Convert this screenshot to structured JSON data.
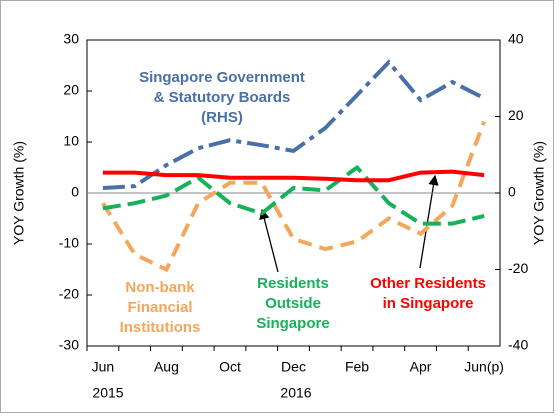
{
  "chart_data": {
    "type": "line",
    "categories": [
      "Jun",
      null,
      "Aug",
      null,
      "Oct",
      null,
      "Dec",
      null,
      "Feb",
      null,
      "Apr",
      null,
      "Jun(p)"
    ],
    "years": [
      "2015",
      "2016"
    ],
    "ylabel": "YOY Growth (%)",
    "y2label": "YOY Growth (%)",
    "ylim": [
      -30,
      30
    ],
    "yticks": [
      -30,
      -20,
      -10,
      0,
      10,
      20,
      30
    ],
    "y2lim": [
      -40,
      40
    ],
    "y2ticks": [
      -40,
      -20,
      0,
      20,
      40
    ],
    "series": [
      {
        "label_lines": [
          "Singapore Government",
          "& Statutory Boards",
          "(RHS)"
        ],
        "color": "#4a70a8",
        "axis": "y2",
        "values": [
          1.3,
          1.8,
          7.3,
          11.7,
          13.8,
          12.5,
          11,
          17,
          25.6,
          34.2,
          24.3,
          29,
          24.8
        ]
      },
      {
        "label_lines": [
          "Non-bank",
          "Financial",
          "Institutions"
        ],
        "color": "#f5a65b",
        "axis": "y",
        "values": [
          -2,
          -12,
          -15,
          -2,
          2,
          2,
          -9,
          -11,
          -9.5,
          -5,
          -8,
          -2.5,
          14
        ]
      },
      {
        "label_lines": [
          "Residents",
          "Outside",
          "Singapore"
        ],
        "color": "#17b15a",
        "axis": "y",
        "values": [
          -3,
          -2,
          -0.5,
          3,
          -2,
          -4,
          1,
          0.5,
          5,
          -2,
          -6,
          -6,
          -4.5
        ]
      },
      {
        "label_lines": [
          "Other Residents",
          "in Singapore"
        ],
        "color": "#ff0000",
        "axis": "y",
        "values": [
          4,
          4,
          3.5,
          3.5,
          3,
          3,
          3,
          2.8,
          2.5,
          2.5,
          4,
          4.2,
          3.5
        ]
      }
    ]
  }
}
